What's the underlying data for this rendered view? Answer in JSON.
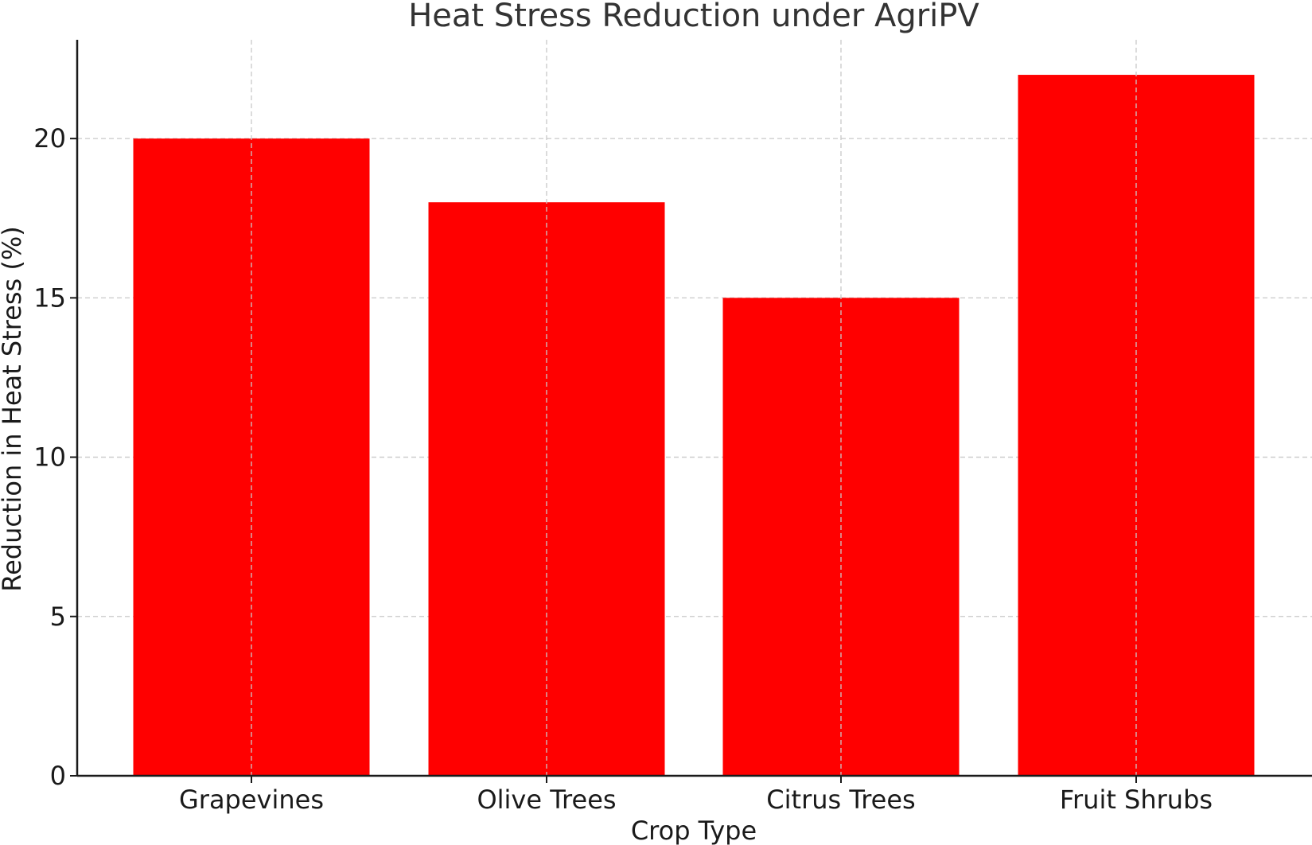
{
  "chart_data": {
    "type": "bar",
    "title": "Heat Stress Reduction under AgriPV",
    "xlabel": "Crop Type",
    "ylabel": "Reduction in Heat Stress (%)",
    "categories": [
      "Grapevines",
      "Olive Trees",
      "Citrus Trees",
      "Fruit Shrubs"
    ],
    "values": [
      20,
      18,
      15,
      22
    ],
    "ylim": [
      0,
      23.1
    ],
    "yticks": [
      0,
      5,
      10,
      15,
      20
    ],
    "bar_color": "#ff0000",
    "grid": true
  }
}
